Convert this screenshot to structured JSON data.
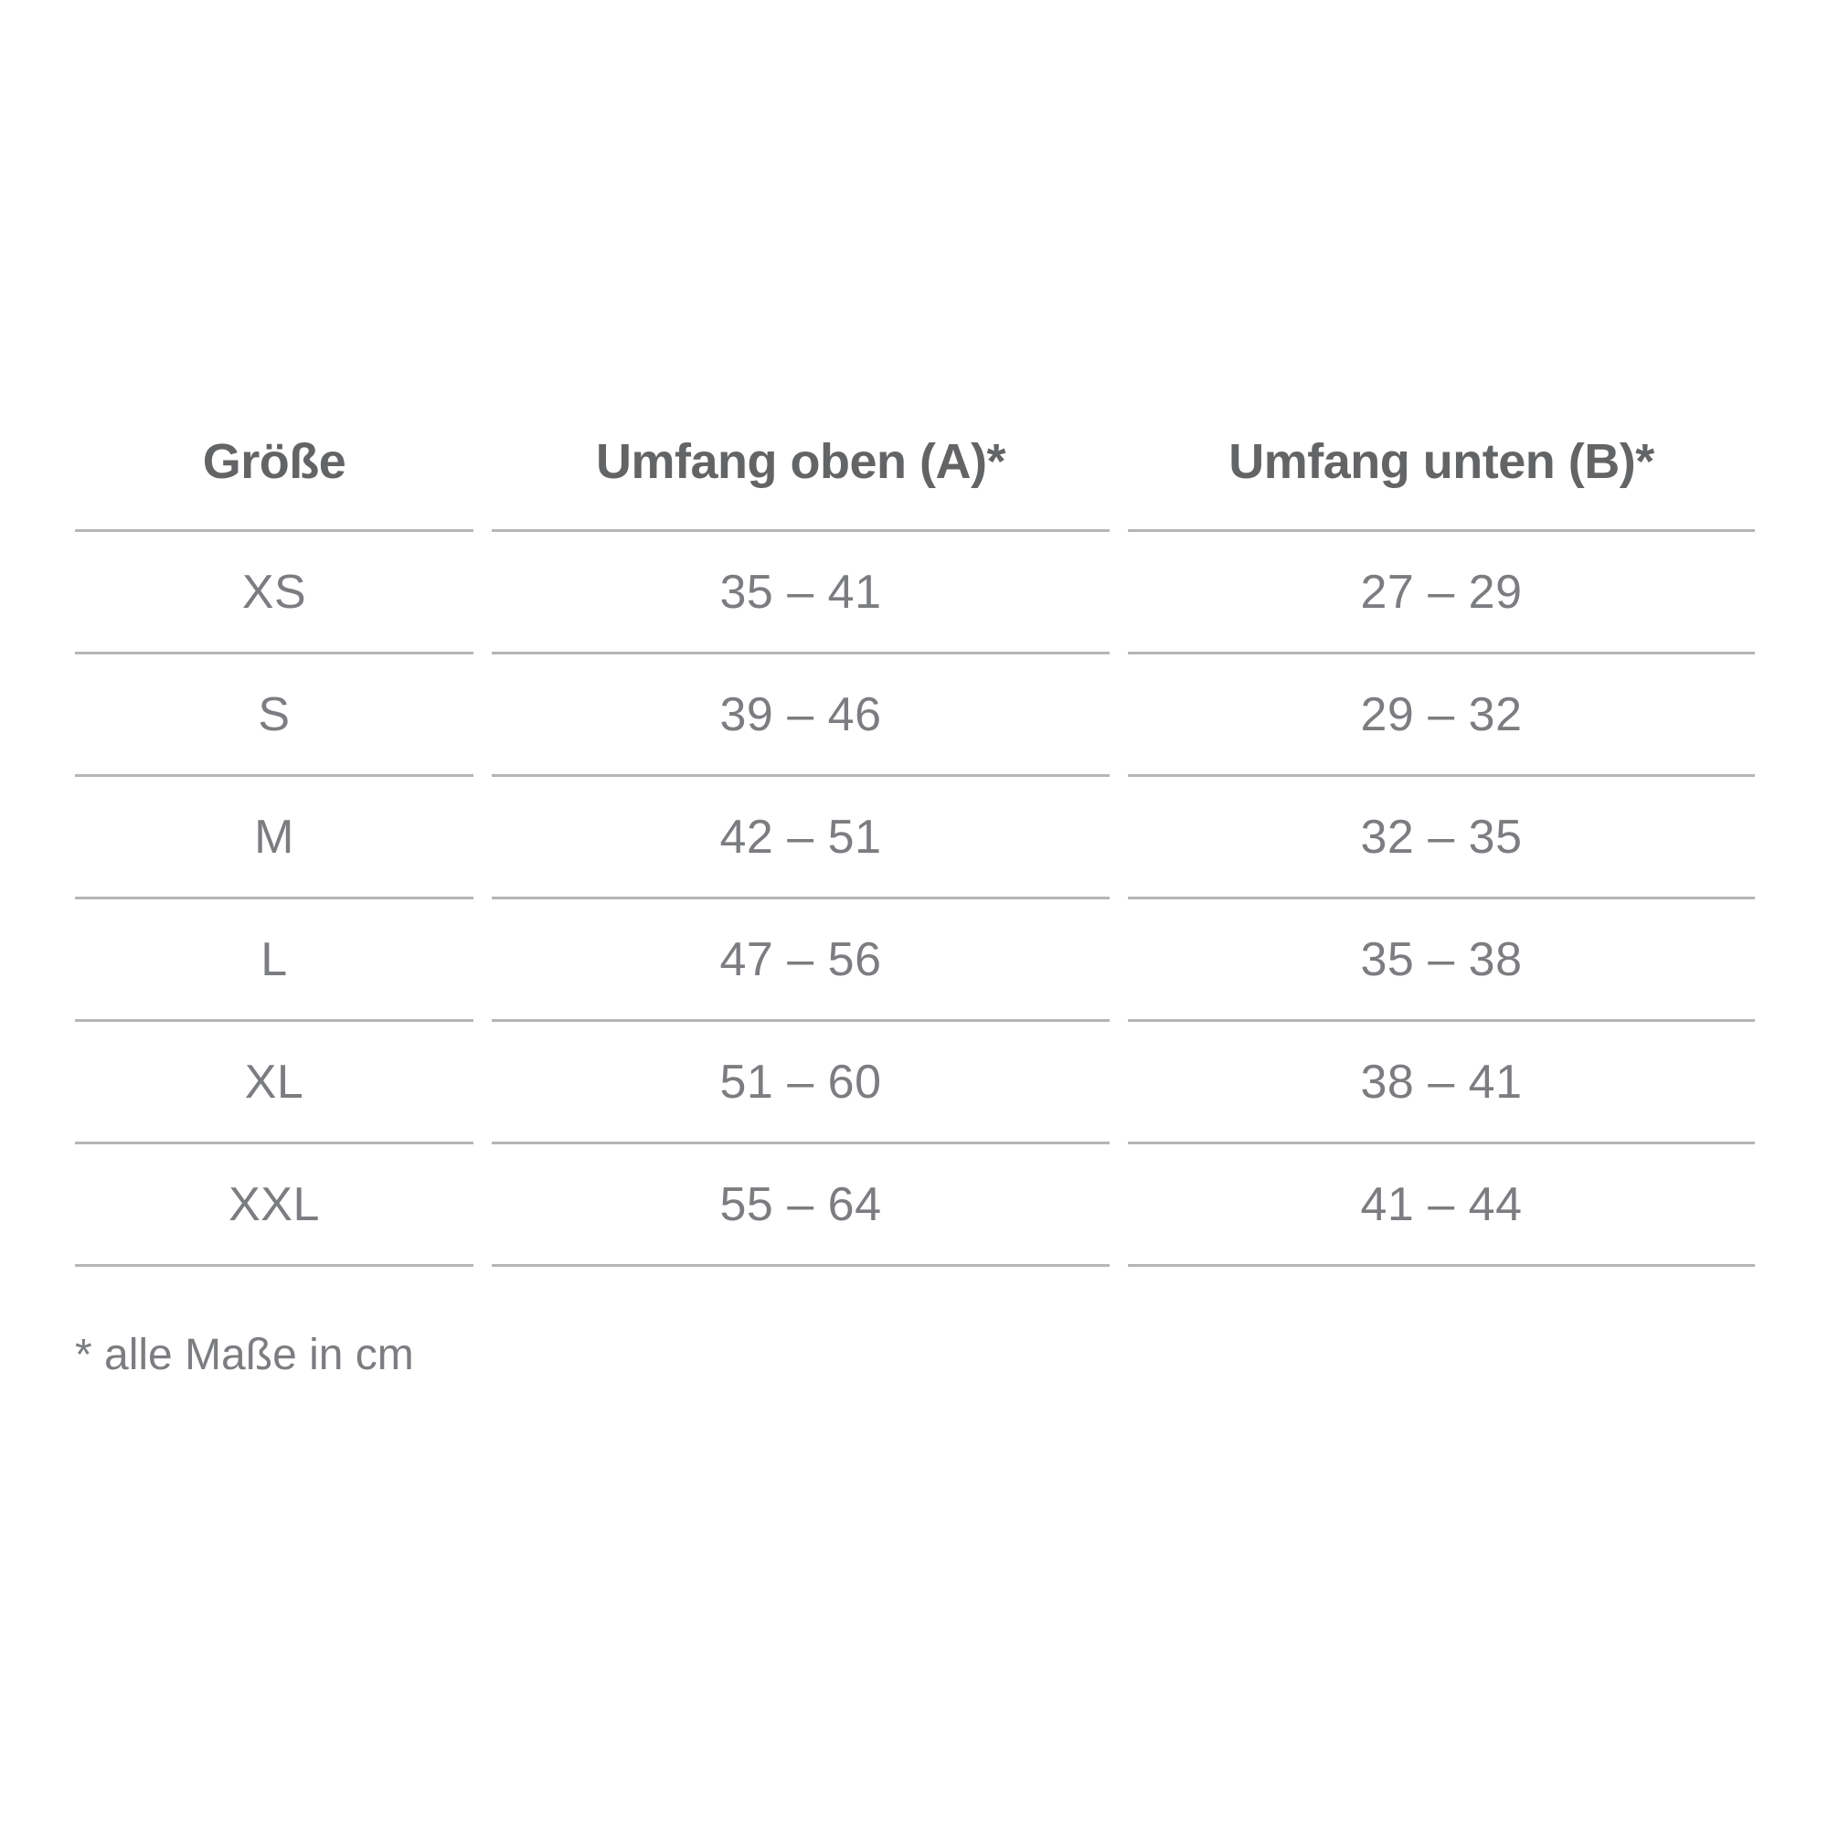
{
  "table": {
    "headers": [
      "Größe",
      "Umfang oben (A)*",
      "Umfang unten (B)*"
    ],
    "rows": [
      {
        "size": "XS",
        "upper": "35 – 41",
        "lower": "27 – 29"
      },
      {
        "size": "S",
        "upper": "39 – 46",
        "lower": "29 – 32"
      },
      {
        "size": "M",
        "upper": "42 – 51",
        "lower": "32 – 35"
      },
      {
        "size": "L",
        "upper": "47 – 56",
        "lower": "35 – 38"
      },
      {
        "size": "XL",
        "upper": "51 – 60",
        "lower": "38 – 41"
      },
      {
        "size": "XXL",
        "upper": "55 – 64",
        "lower": "41 – 44"
      }
    ],
    "footnote": "* alle Maße in cm"
  },
  "colors": {
    "background": "#ffffff",
    "header_text": "#636466",
    "data_text": "#7b7d80",
    "separator_line": "#b5b6b8"
  }
}
